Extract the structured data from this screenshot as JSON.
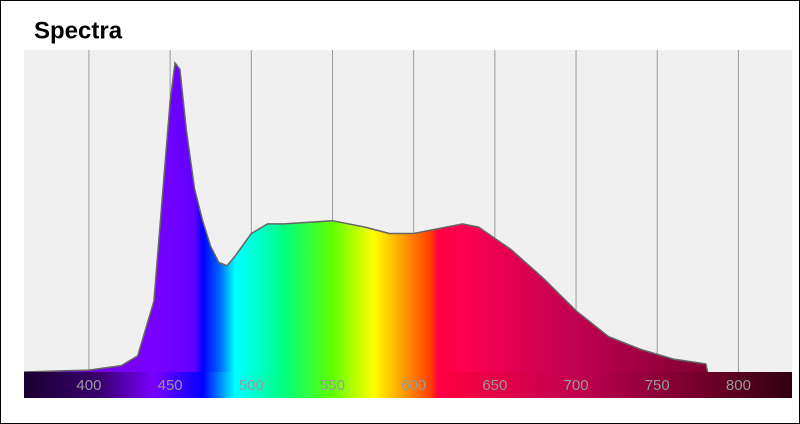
{
  "chart_data": {
    "type": "area",
    "title": "Spectra",
    "x": [
      360,
      380,
      400,
      420,
      430,
      440,
      445,
      450,
      453,
      456,
      460,
      465,
      470,
      475,
      480,
      485,
      490,
      500,
      510,
      520,
      550,
      570,
      585,
      600,
      620,
      630,
      640,
      660,
      680,
      700,
      720,
      740,
      760,
      780,
      781
    ],
    "values": [
      0,
      0.003,
      0.006,
      0.02,
      0.05,
      0.22,
      0.53,
      0.84,
      0.96,
      0.94,
      0.75,
      0.57,
      0.47,
      0.39,
      0.34,
      0.33,
      0.36,
      0.43,
      0.46,
      0.46,
      0.47,
      0.45,
      0.43,
      0.43,
      0.45,
      0.46,
      0.45,
      0.38,
      0.29,
      0.19,
      0.11,
      0.07,
      0.04,
      0.025,
      0
    ],
    "xlim": [
      360,
      833
    ],
    "xticks": [
      400,
      450,
      500,
      550,
      600,
      650,
      700,
      750,
      800
    ],
    "ylim": [
      0,
      1
    ],
    "grid": true,
    "line_color": "#666666"
  }
}
